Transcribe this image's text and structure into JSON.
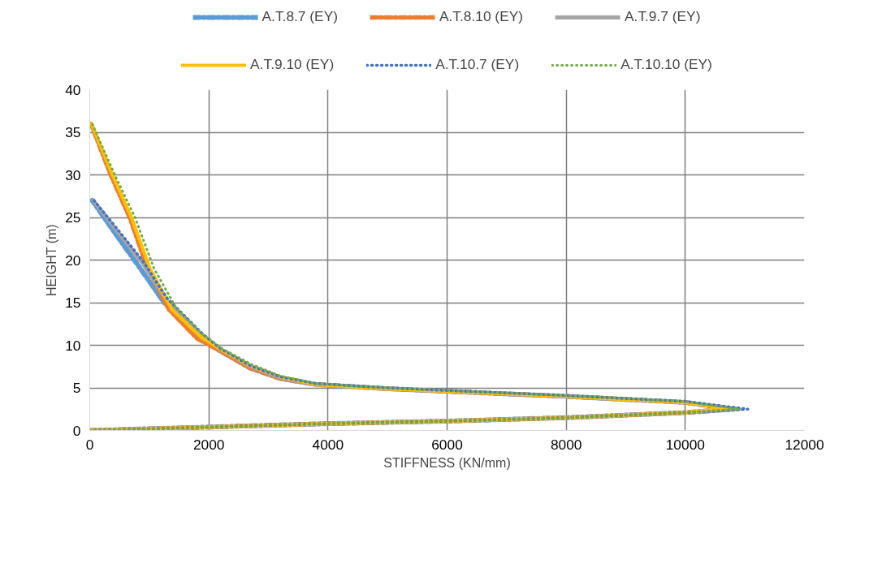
{
  "chart_data": {
    "type": "line",
    "xlabel": "STIFFNESS (KN/mm)",
    "ylabel": "HEIGHT (m)",
    "xlim": [
      0,
      12000
    ],
    "xticks": [
      0,
      2000,
      4000,
      6000,
      8000,
      10000,
      12000
    ],
    "ylim": [
      0,
      40
    ],
    "yticks": [
      0,
      5,
      10,
      15,
      20,
      25,
      30,
      35,
      40
    ],
    "grid": true,
    "legend": "top",
    "marker": "none",
    "series": [
      {
        "name": "A.T.8.7 (EY)",
        "color": "#5b9bd5",
        "line_style": "dashed",
        "x": [
          0,
          2000,
          4000,
          6000,
          8000,
          10000,
          10800,
          10000,
          8000,
          6000,
          5000,
          3800,
          3200,
          2700,
          2200,
          1800,
          1250,
          850,
          440,
          40
        ],
        "values": [
          0,
          0.4,
          0.8,
          1.1,
          1.5,
          2.1,
          2.5,
          3.3,
          4.0,
          4.6,
          4.9,
          5.4,
          6.1,
          7.3,
          9.3,
          11.0,
          15.0,
          19.0,
          23.0,
          27.0
        ]
      },
      {
        "name": "A.T.8.10 (EY)",
        "color": "#ed7d31",
        "line_style": "dashed",
        "x": [
          0,
          2000,
          4000,
          6000,
          8000,
          10000,
          10800,
          10000,
          8000,
          6000,
          5000,
          3800,
          3200,
          2700,
          2200,
          1800,
          1330,
          970,
          670,
          350,
          20
        ],
        "values": [
          0,
          0.4,
          0.8,
          1.1,
          1.5,
          2.1,
          2.5,
          3.3,
          4.0,
          4.6,
          4.9,
          5.4,
          6.1,
          7.3,
          9.3,
          10.8,
          14.2,
          19.0,
          25.0,
          30.0,
          36.0
        ]
      },
      {
        "name": "A.T.9.7 (EY)",
        "color": "#a5a5a5",
        "line_style": "solid",
        "x": [
          0,
          2000,
          4000,
          6000,
          8000,
          10000,
          10900,
          10000,
          8000,
          6000,
          5000,
          3800,
          3200,
          2700,
          2200,
          1860,
          1280,
          880,
          470,
          60
        ],
        "values": [
          0,
          0.4,
          0.8,
          1.1,
          1.5,
          2.1,
          2.5,
          3.3,
          4.0,
          4.6,
          4.9,
          5.4,
          6.2,
          7.5,
          9.5,
          11.2,
          15.4,
          19.7,
          23.3,
          27.0
        ]
      },
      {
        "name": "A.T.9.10 (EY)",
        "color": "#ffc000",
        "line_style": "solid",
        "x": [
          0,
          2000,
          4000,
          6000,
          8000,
          10000,
          10700,
          10000,
          8000,
          6000,
          5000,
          3800,
          3200,
          2700,
          2200,
          1860,
          1380,
          1010,
          700,
          380,
          30
        ],
        "values": [
          0,
          0.4,
          0.8,
          1.1,
          1.5,
          2.1,
          2.6,
          3.3,
          4.0,
          4.6,
          4.9,
          5.4,
          6.3,
          7.6,
          9.5,
          11.0,
          14.2,
          19.0,
          25.0,
          30.0,
          36.0
        ]
      },
      {
        "name": "A.T.10.7 (EY)",
        "color": "#4472c4",
        "line_style": "dotted",
        "x": [
          0,
          2000,
          4000,
          6000,
          8000,
          10000,
          11050,
          10000,
          8000,
          6000,
          5000,
          3800,
          3200,
          2700,
          2200,
          1900,
          1300,
          900,
          490,
          70
        ],
        "values": [
          0,
          0.4,
          0.8,
          1.1,
          1.5,
          2.1,
          2.5,
          3.4,
          4.1,
          4.7,
          5.0,
          5.5,
          6.3,
          7.6,
          9.6,
          11.3,
          15.5,
          19.8,
          23.4,
          27.0
        ]
      },
      {
        "name": "A.T.10.10 (EY)",
        "color": "#70ad47",
        "line_style": "dotted",
        "x": [
          0,
          2000,
          4000,
          6000,
          8000,
          10000,
          10900,
          10000,
          8000,
          6000,
          5000,
          3800,
          3200,
          2700,
          2200,
          1900,
          1450,
          1080,
          760,
          420,
          40
        ],
        "values": [
          0,
          0.4,
          0.8,
          1.1,
          1.5,
          2.1,
          2.5,
          3.4,
          4.1,
          4.7,
          5.0,
          5.5,
          6.4,
          7.8,
          9.7,
          11.3,
          14.4,
          19.0,
          25.0,
          30.0,
          36.0
        ]
      }
    ]
  }
}
